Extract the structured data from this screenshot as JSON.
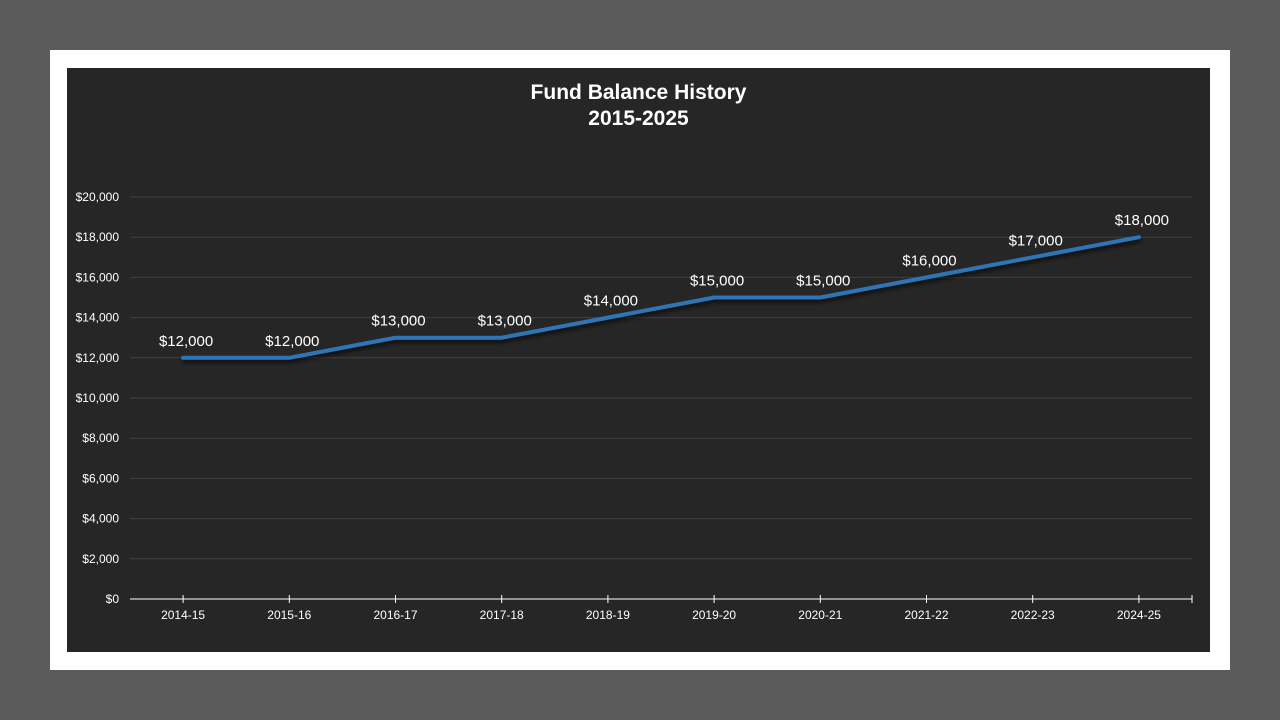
{
  "chart_data": {
    "type": "line",
    "title": "Fund Balance History",
    "subtitle": "2015-2025",
    "xlabel": "",
    "ylabel": "",
    "categories": [
      "2014-15",
      "2015-16",
      "2016-17",
      "2017-18",
      "2018-19",
      "2019-20",
      "2020-21",
      "2021-22",
      "2022-23",
      "2024-25"
    ],
    "series": [
      {
        "name": "Fund Balance",
        "values": [
          12000,
          12000,
          13000,
          13000,
          14000,
          15000,
          15000,
          16000,
          17000,
          18000
        ],
        "color": "#2e75b6"
      }
    ],
    "data_labels": [
      "$12,000",
      "$12,000",
      "$13,000",
      "$13,000",
      "$14,000",
      "$15,000",
      "$15,000",
      "$16,000",
      "$17,000",
      "$18,000"
    ],
    "y_ticks": [
      0,
      2000,
      4000,
      6000,
      8000,
      10000,
      12000,
      14000,
      16000,
      18000,
      20000
    ],
    "y_tick_labels": [
      "$0",
      "$2,000",
      "$4,000",
      "$6,000",
      "$8,000",
      "$10,000",
      "$12,000",
      "$14,000",
      "$16,000",
      "$18,000",
      "$20,000"
    ],
    "ylim": [
      0,
      20000
    ],
    "grid": true,
    "legend": "none",
    "colors": {
      "background": "#262626",
      "frame": "#ffffff",
      "outer": "#5b5b5b",
      "line": "#2e75b6",
      "grid": "#404040",
      "text": "#ffffff"
    }
  }
}
